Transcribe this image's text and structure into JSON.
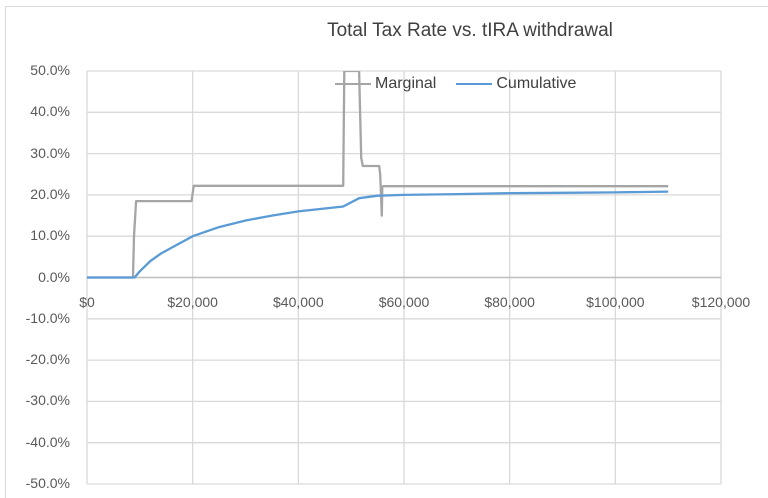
{
  "chart_data": {
    "type": "line",
    "title": "Total Tax Rate vs. tIRA withdrawal",
    "xlabel": "",
    "ylabel": "",
    "xlim": [
      0,
      120000
    ],
    "ylim": [
      -0.5,
      0.5
    ],
    "grid": true,
    "legend_position": "top-right inside",
    "x_tick_labels": [
      "$0",
      "$20,000",
      "$40,000",
      "$60,000",
      "$80,000",
      "$100,000",
      "$120,000"
    ],
    "y_tick_labels": [
      "50.0%",
      "40.0%",
      "30.0%",
      "20.0%",
      "10.0%",
      "0.0%",
      "-10.0%",
      "-20.0%",
      "-30.0%",
      "-40.0%",
      "-50.0%"
    ],
    "series": [
      {
        "name": "Marginal",
        "color": "#a5a5a5",
        "x": [
          0,
          8700,
          8900,
          9300,
          19800,
          20200,
          48500,
          48700,
          51500,
          51900,
          52200,
          55300,
          55500,
          55800,
          55900,
          56100,
          110000
        ],
        "values": [
          0.0,
          0.0,
          0.1,
          0.185,
          0.185,
          0.222,
          0.222,
          0.5,
          0.5,
          0.29,
          0.27,
          0.27,
          0.25,
          0.15,
          0.22,
          0.221,
          0.221
        ]
      },
      {
        "name": "Cumulative",
        "color": "#5b9bd5",
        "x": [
          0,
          9000,
          10000,
          12000,
          14000,
          16000,
          20000,
          25000,
          30000,
          35000,
          40000,
          45000,
          48500,
          51500,
          55000,
          60000,
          70000,
          80000,
          90000,
          100000,
          110000
        ],
        "values": [
          0.0,
          0.0,
          0.015,
          0.04,
          0.058,
          0.072,
          0.1,
          0.122,
          0.138,
          0.15,
          0.16,
          0.167,
          0.172,
          0.192,
          0.198,
          0.2,
          0.202,
          0.204,
          0.205,
          0.206,
          0.208
        ]
      }
    ]
  },
  "legend": {
    "marginal_label": "Marginal",
    "cumulative_label": "Cumulative"
  }
}
